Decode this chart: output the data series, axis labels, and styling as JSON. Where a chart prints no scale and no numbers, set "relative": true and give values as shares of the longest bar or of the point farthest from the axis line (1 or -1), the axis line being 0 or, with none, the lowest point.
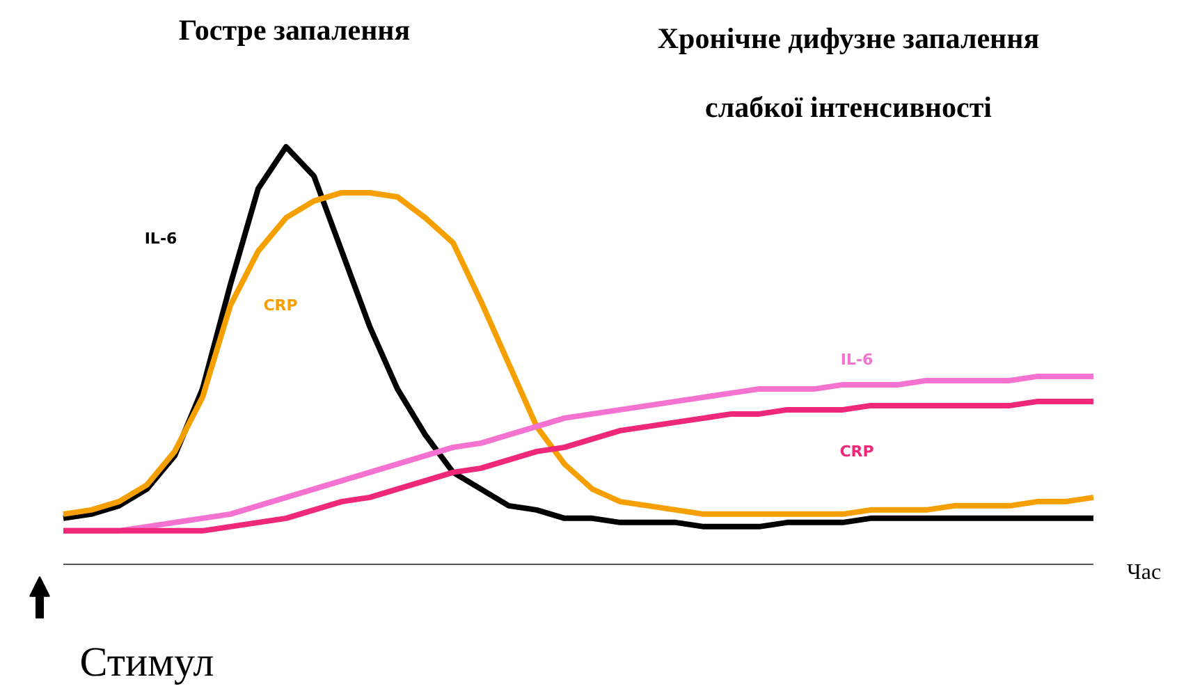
{
  "chart_data": {
    "type": "line",
    "relative": true,
    "categories": [
      null,
      null,
      null,
      null,
      null,
      null,
      null,
      null,
      null,
      null,
      null,
      null,
      null,
      null,
      null,
      null,
      null,
      null,
      null,
      null,
      null,
      null,
      null,
      null,
      null,
      null,
      null,
      null,
      null,
      null,
      null,
      null,
      null,
      null,
      null,
      null,
      null,
      null
    ],
    "xlabel": "Час",
    "annotations": [
      "Гостре запалення",
      "Хронічне дифузне запалення\nслабкої інтенсивності",
      "Стимул"
    ],
    "series": [
      {
        "name": "IL-6",
        "color": "#000000",
        "values": [
          0.11,
          0.12,
          0.14,
          0.18,
          0.26,
          0.42,
          0.67,
          0.9,
          1.0,
          0.93,
          0.75,
          0.57,
          0.42,
          0.31,
          0.22,
          0.18,
          0.14,
          0.13,
          0.11,
          0.11,
          0.1,
          0.1,
          0.1,
          0.09,
          0.09,
          0.09,
          0.1,
          0.1,
          0.1,
          0.11,
          0.11,
          0.11,
          0.11,
          0.11,
          0.11,
          0.11,
          0.11,
          0.11
        ]
      },
      {
        "name": "CRP",
        "color": "#f5a000",
        "values": [
          0.12,
          0.13,
          0.15,
          0.19,
          0.27,
          0.4,
          0.62,
          0.75,
          0.83,
          0.87,
          0.89,
          0.89,
          0.88,
          0.83,
          0.77,
          0.63,
          0.48,
          0.33,
          0.24,
          0.18,
          0.15,
          0.14,
          0.13,
          0.12,
          0.12,
          0.12,
          0.12,
          0.12,
          0.12,
          0.13,
          0.13,
          0.13,
          0.14,
          0.14,
          0.14,
          0.15,
          0.15,
          0.16
        ]
      },
      {
        "name": "IL-6",
        "color": "#f472d0",
        "values": [
          0.08,
          0.08,
          0.08,
          0.09,
          0.1,
          0.11,
          0.12,
          0.14,
          0.16,
          0.18,
          0.2,
          0.22,
          0.24,
          0.26,
          0.28,
          0.29,
          0.31,
          0.33,
          0.35,
          0.36,
          0.37,
          0.38,
          0.39,
          0.4,
          0.41,
          0.42,
          0.42,
          0.42,
          0.43,
          0.43,
          0.43,
          0.44,
          0.44,
          0.44,
          0.44,
          0.45,
          0.45,
          0.45
        ]
      },
      {
        "name": "CRP",
        "color": "#f0287a",
        "values": [
          0.08,
          0.08,
          0.08,
          0.08,
          0.08,
          0.08,
          0.09,
          0.1,
          0.11,
          0.13,
          0.15,
          0.16,
          0.18,
          0.2,
          0.22,
          0.23,
          0.25,
          0.27,
          0.28,
          0.3,
          0.32,
          0.33,
          0.34,
          0.35,
          0.36,
          0.36,
          0.37,
          0.37,
          0.37,
          0.38,
          0.38,
          0.38,
          0.38,
          0.38,
          0.38,
          0.39,
          0.39,
          0.39
        ]
      }
    ]
  }
}
